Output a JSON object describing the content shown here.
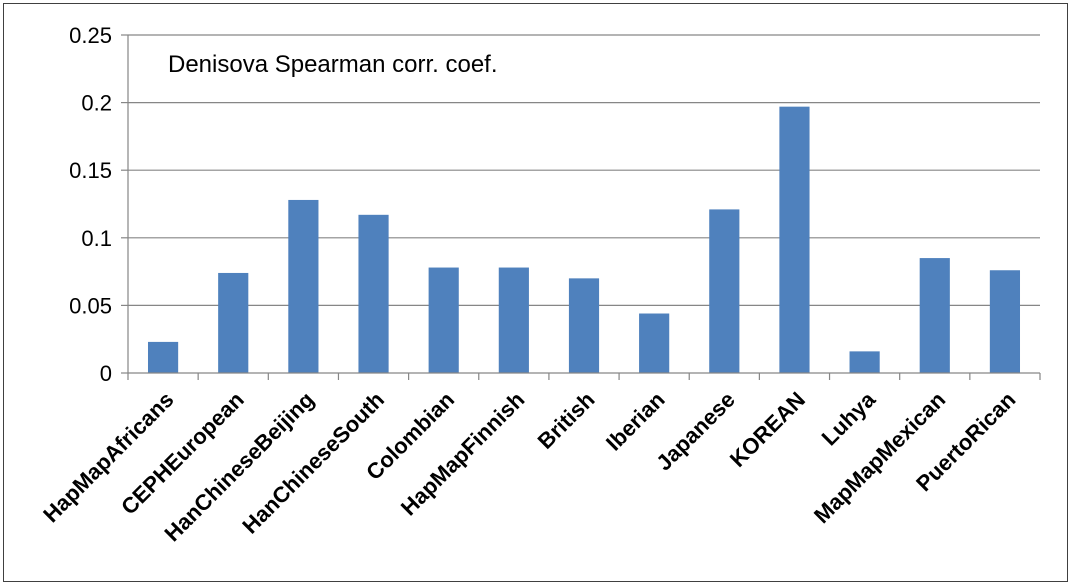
{
  "chart_data": {
    "type": "bar",
    "title": "Denisova Spearman corr. coef.",
    "xlabel": "",
    "ylabel": "",
    "categories": [
      "HapMapAfricans",
      "CEPHEuropean",
      "HanChineseBeijing",
      "HanChineseSouth",
      "Colombian",
      "HapMapFinnish",
      "British",
      "Iberian",
      "Japanese",
      "KOREAN",
      "Luhya",
      "MapMapMexican",
      "PuertoRican"
    ],
    "values": [
      0.023,
      0.074,
      0.128,
      0.117,
      0.078,
      0.078,
      0.07,
      0.044,
      0.121,
      0.197,
      0.016,
      0.085,
      0.076
    ],
    "ylim": [
      0,
      0.25
    ],
    "yticks": [
      0,
      0.05,
      0.1,
      0.15,
      0.2,
      0.25
    ],
    "ytick_labels": [
      "0",
      "0.05",
      "0.1",
      "0.15",
      "0.2",
      "0.25"
    ],
    "grid": true,
    "legend": "none",
    "bar_color": "#4F81BD",
    "grid_color": "#868686"
  }
}
